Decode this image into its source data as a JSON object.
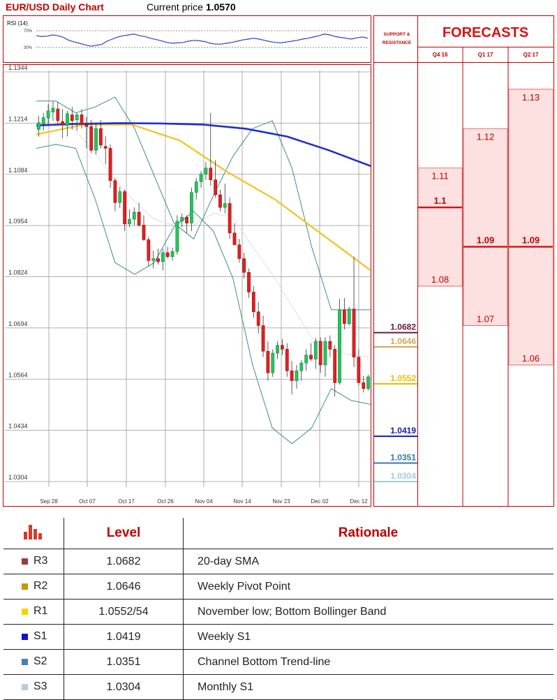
{
  "header": {
    "title": "EUR/USD Daily Chart",
    "price_label": "Current price",
    "price_value": "1.0570"
  },
  "rsi_panel": {
    "label": "RSI (14)",
    "upper_tick": "70%",
    "lower_tick": "30%",
    "upper_level": 70,
    "lower_level": 30
  },
  "chart_data": [
    {
      "type": "candlestick",
      "title": "EUR/USD Daily Chart",
      "ylim": [
        1.0304,
        1.1344
      ],
      "y_ticks": [
        "1.1344",
        "1.1214",
        "1.1084",
        "1.0954",
        "1.0824",
        "1.0694",
        "1.0564",
        "1.0434",
        "1.0304"
      ],
      "x_ticks": [
        "Sep 28",
        "Oct 07",
        "Oct 17",
        "Oct 26",
        "Nov 04",
        "Nov 14",
        "Nov 23",
        "Dec 02",
        "Dec 12"
      ],
      "grid": true,
      "candles": [
        {
          "o": 1.1198,
          "h": 1.1232,
          "l": 1.118,
          "c": 1.1215
        },
        {
          "o": 1.1212,
          "h": 1.124,
          "l": 1.1195,
          "c": 1.1228
        },
        {
          "o": 1.1227,
          "h": 1.1262,
          "l": 1.121,
          "c": 1.1245
        },
        {
          "o": 1.1242,
          "h": 1.127,
          "l": 1.122,
          "c": 1.1252
        },
        {
          "o": 1.125,
          "h": 1.1268,
          "l": 1.121,
          "c": 1.122
        },
        {
          "o": 1.1218,
          "h": 1.125,
          "l": 1.1175,
          "c": 1.121
        },
        {
          "o": 1.1208,
          "h": 1.1245,
          "l": 1.118,
          "c": 1.1238
        },
        {
          "o": 1.1235,
          "h": 1.1255,
          "l": 1.1198,
          "c": 1.122
        },
        {
          "o": 1.1222,
          "h": 1.124,
          "l": 1.1195,
          "c": 1.1235
        },
        {
          "o": 1.1235,
          "h": 1.125,
          "l": 1.12,
          "c": 1.1212
        },
        {
          "o": 1.121,
          "h": 1.123,
          "l": 1.115,
          "c": 1.1205
        },
        {
          "o": 1.1205,
          "h": 1.1222,
          "l": 1.1138,
          "c": 1.1145
        },
        {
          "o": 1.1145,
          "h": 1.121,
          "l": 1.1135,
          "c": 1.12
        },
        {
          "o": 1.12,
          "h": 1.1222,
          "l": 1.115,
          "c": 1.1158
        },
        {
          "o": 1.1155,
          "h": 1.118,
          "l": 1.111,
          "c": 1.115
        },
        {
          "o": 1.115,
          "h": 1.116,
          "l": 1.105,
          "c": 1.1068
        },
        {
          "o": 1.1068,
          "h": 1.1075,
          "l": 1.099,
          "c": 1.1012
        },
        {
          "o": 1.1012,
          "h": 1.1052,
          "l": 1.0998,
          "c": 1.104
        },
        {
          "o": 1.104,
          "h": 1.1045,
          "l": 1.094,
          "c": 1.0958
        },
        {
          "o": 1.0958,
          "h": 1.0995,
          "l": 1.095,
          "c": 1.097
        },
        {
          "o": 1.097,
          "h": 1.1,
          "l": 1.0955,
          "c": 1.0988
        },
        {
          "o": 1.0988,
          "h": 1.1012,
          "l": 1.095,
          "c": 1.0955
        },
        {
          "o": 1.0955,
          "h": 1.098,
          "l": 1.0915,
          "c": 1.0918
        },
        {
          "o": 1.0918,
          "h": 1.0925,
          "l": 1.085,
          "c": 1.0865
        },
        {
          "o": 1.0865,
          "h": 1.089,
          "l": 1.0845,
          "c": 1.087
        },
        {
          "o": 1.087,
          "h": 1.0895,
          "l": 1.0855,
          "c": 1.0862
        },
        {
          "o": 1.0862,
          "h": 1.0895,
          "l": 1.084,
          "c": 1.0885
        },
        {
          "o": 1.0885,
          "h": 1.09,
          "l": 1.087,
          "c": 1.0875
        },
        {
          "o": 1.0875,
          "h": 1.0898,
          "l": 1.0865,
          "c": 1.0888
        },
        {
          "o": 1.0888,
          "h": 1.098,
          "l": 1.088,
          "c": 1.0965
        },
        {
          "o": 1.0965,
          "h": 1.0985,
          "l": 1.095,
          "c": 1.0975
        },
        {
          "o": 1.0975,
          "h": 1.098,
          "l": 1.0935,
          "c": 1.096
        },
        {
          "o": 1.096,
          "h": 1.105,
          "l": 1.094,
          "c": 1.1038
        },
        {
          "o": 1.1038,
          "h": 1.1075,
          "l": 1.102,
          "c": 1.1065
        },
        {
          "o": 1.1065,
          "h": 1.1092,
          "l": 1.105,
          "c": 1.1085
        },
        {
          "o": 1.1085,
          "h": 1.1115,
          "l": 1.107,
          "c": 1.11
        },
        {
          "o": 1.11,
          "h": 1.124,
          "l": 1.1055,
          "c": 1.107
        },
        {
          "o": 1.107,
          "h": 1.112,
          "l": 1.1025,
          "c": 1.1032
        },
        {
          "o": 1.1032,
          "h": 1.1045,
          "l": 1.099,
          "c": 1.1
        },
        {
          "o": 1.1,
          "h": 1.106,
          "l": 1.0985,
          "c": 1.101
        },
        {
          "o": 1.101,
          "h": 1.1025,
          "l": 1.092,
          "c": 1.0935
        },
        {
          "o": 1.0935,
          "h": 1.096,
          "l": 1.091,
          "c": 1.0905
        },
        {
          "o": 1.0905,
          "h": 1.092,
          "l": 1.086,
          "c": 1.087
        },
        {
          "o": 1.087,
          "h": 1.0885,
          "l": 1.082,
          "c": 1.0835
        },
        {
          "o": 1.0835,
          "h": 1.0845,
          "l": 1.077,
          "c": 1.0785
        },
        {
          "o": 1.0785,
          "h": 1.08,
          "l": 1.072,
          "c": 1.0735
        },
        {
          "o": 1.0735,
          "h": 1.076,
          "l": 1.068,
          "c": 1.07
        },
        {
          "o": 1.07,
          "h": 1.0725,
          "l": 1.062,
          "c": 1.0635
        },
        {
          "o": 1.0635,
          "h": 1.066,
          "l": 1.056,
          "c": 1.058
        },
        {
          "o": 1.058,
          "h": 1.064,
          "l": 1.057,
          "c": 1.063
        },
        {
          "o": 1.063,
          "h": 1.066,
          "l": 1.0615,
          "c": 1.065
        },
        {
          "o": 1.065,
          "h": 1.0665,
          "l": 1.0625,
          "c": 1.064
        },
        {
          "o": 1.064,
          "h": 1.0655,
          "l": 1.057,
          "c": 1.0585
        },
        {
          "o": 1.0585,
          "h": 1.061,
          "l": 1.0525,
          "c": 1.056
        },
        {
          "o": 1.056,
          "h": 1.06,
          "l": 1.054,
          "c": 1.0585
        },
        {
          "o": 1.0585,
          "h": 1.0612,
          "l": 1.056,
          "c": 1.0605
        },
        {
          "o": 1.0605,
          "h": 1.064,
          "l": 1.0585,
          "c": 1.0625
        },
        {
          "o": 1.0625,
          "h": 1.0655,
          "l": 1.061,
          "c": 1.0615
        },
        {
          "o": 1.0615,
          "h": 1.0668,
          "l": 1.059,
          "c": 1.066
        },
        {
          "o": 1.066,
          "h": 1.067,
          "l": 1.058,
          "c": 1.06
        },
        {
          "o": 1.06,
          "h": 1.067,
          "l": 1.057,
          "c": 1.066
        },
        {
          "o": 1.066,
          "h": 1.0675,
          "l": 1.062,
          "c": 1.064
        },
        {
          "o": 1.064,
          "h": 1.065,
          "l": 1.052,
          "c": 1.0555
        },
        {
          "o": 1.0555,
          "h": 1.0768,
          "l": 1.055,
          "c": 1.074
        },
        {
          "o": 1.074,
          "h": 1.077,
          "l": 1.069,
          "c": 1.0705
        },
        {
          "o": 1.0705,
          "h": 1.0748,
          "l": 1.07,
          "c": 1.0742
        },
        {
          "o": 1.0742,
          "h": 1.0875,
          "l": 1.0595,
          "c": 1.062
        },
        {
          "o": 1.062,
          "h": 1.064,
          "l": 1.0548,
          "c": 1.0555
        },
        {
          "o": 1.0555,
          "h": 1.0572,
          "l": 1.053,
          "c": 1.054
        },
        {
          "o": 1.054,
          "h": 1.0575,
          "l": 1.0535,
          "c": 1.057
        }
      ],
      "series": [
        {
          "name": "",
          "color": "#2030c8",
          "y": [
            1.1208,
            1.1212,
            1.1214,
            1.1213,
            1.121,
            1.12,
            1.118,
            1.1145,
            1.1105
          ]
        },
        {
          "name": "",
          "color": "#f5c21b",
          "y": [
            1.1185,
            1.121,
            1.121,
            1.117,
            1.109,
            1.102,
            1.093,
            1.084
          ]
        },
        {
          "name": "",
          "color": "#3a8f8a",
          "y": [
            1.127,
            1.127,
            1.124,
            1.1255,
            1.128,
            1.12,
            1.108,
            1.096,
            1.092,
            1.103,
            1.113,
            1.12,
            1.122,
            1.11,
            1.09,
            1.074,
            1.074,
            1.074
          ]
        },
        {
          "name": "",
          "color": "#3a8f8a",
          "y": [
            1.115,
            1.116,
            1.115,
            1.102,
            1.086,
            1.083,
            1.086,
            1.095,
            1.099,
            1.094,
            1.082,
            1.06,
            1.044,
            1.04,
            1.044,
            1.054,
            1.051,
            1.05
          ]
        }
      ]
    },
    {
      "type": "line",
      "title": "RSI (14)",
      "ylim": [
        0,
        100
      ],
      "y": [
        58,
        56,
        57,
        60,
        58,
        54,
        47,
        43,
        40,
        36,
        33,
        35,
        37,
        45,
        50,
        55,
        58,
        60,
        62,
        58,
        56,
        52,
        49,
        46,
        42,
        40,
        41,
        42,
        45,
        47,
        46,
        44,
        40,
        38,
        38,
        40,
        42,
        45,
        48,
        50,
        52,
        50,
        47,
        44,
        42,
        41,
        43,
        45,
        47,
        50,
        52,
        55,
        58,
        62,
        60,
        56,
        54,
        52,
        50,
        53,
        55,
        52
      ]
    }
  ],
  "support_resistance": {
    "title_line1": "SUPPORT &",
    "title_line2": "RESISTANCE",
    "tags": [
      {
        "value": 1.0682,
        "label": "1.0682",
        "color": "#6b1a3a"
      },
      {
        "value": 1.0646,
        "label": "1.0646",
        "color": "#d4a656"
      },
      {
        "value": 1.0552,
        "label": "1.0552",
        "color": "#e8c000"
      },
      {
        "value": 1.0419,
        "label": "1.0419",
        "color": "#1a1ab8"
      },
      {
        "value": 1.0351,
        "label": "1.0351",
        "color": "#3878a8"
      },
      {
        "value": 1.0304,
        "label": "1.0304",
        "color": "#a8cad8"
      }
    ]
  },
  "forecasts": {
    "title": "FORECASTS",
    "columns": [
      {
        "label": "Q4 16",
        "range": [
          1.08,
          1.11
        ],
        "values": [
          "1.11",
          "1.1",
          "1.08"
        ],
        "value_nums": [
          1.11,
          1.1,
          1.08
        ],
        "bold_index": 1
      },
      {
        "label": "Q1 17",
        "range": [
          1.07,
          1.12
        ],
        "values": [
          "1.12",
          "1.09",
          "1.07"
        ],
        "value_nums": [
          1.12,
          1.09,
          1.07
        ],
        "bold_index": 1
      },
      {
        "label": "Q2 17",
        "range": [
          1.06,
          1.13
        ],
        "values": [
          "1.13",
          "1.09",
          "1.06"
        ],
        "value_nums": [
          1.13,
          1.09,
          1.06
        ],
        "bold_index": 1
      }
    ]
  },
  "table": {
    "icon": "bar-chart-icon",
    "headers": [
      "",
      "Level",
      "Rationale"
    ],
    "rows": [
      {
        "name": "R3",
        "level": "1.0682",
        "rationale": "20-day SMA",
        "color": "#9e3a3a"
      },
      {
        "name": "R2",
        "level": "1.0646",
        "rationale": "Weekly Pivot Point",
        "color": "#c8960c"
      },
      {
        "name": "R1",
        "level": "1.0552/54",
        "rationale": "November low; Bottom Bollinger Band",
        "color": "#ffd000"
      },
      {
        "name": "S1",
        "level": "1.0419",
        "rationale": "Weekly S1",
        "color": "#1010d0"
      },
      {
        "name": "S2",
        "level": "1.0351",
        "rationale": "Channel Bottom Trend-line",
        "color": "#4a7fb5"
      },
      {
        "name": "S3",
        "level": "1.0304",
        "rationale": "Monthly S1",
        "color": "#b8cce4"
      }
    ]
  }
}
